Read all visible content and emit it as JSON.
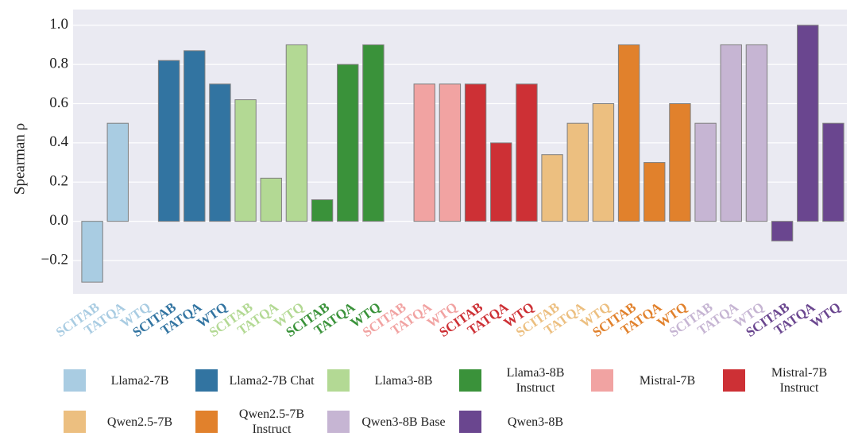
{
  "chart_data": {
    "type": "bar",
    "y_label": "Spearman ρ",
    "categories": [
      "SCITAB",
      "TATQA",
      "WTQ"
    ],
    "series": [
      {
        "name": "Llama2-7B",
        "color": "#a9cce2",
        "values": [
          -0.31,
          0.5,
          0.0
        ]
      },
      {
        "name": "Llama2-7B Chat",
        "color": "#3274a1",
        "values": [
          0.82,
          0.87,
          0.7
        ]
      },
      {
        "name": "Llama3-8B",
        "color": "#b3d994",
        "values": [
          0.62,
          0.22,
          0.9
        ]
      },
      {
        "name": "Llama3-8B Instruct",
        "color": "#3a923a",
        "values": [
          0.11,
          0.8,
          0.9
        ]
      },
      {
        "name": "Mistral-7B",
        "color": "#f1a3a2",
        "values": [
          0.0,
          0.7,
          0.7
        ]
      },
      {
        "name": "Mistral-7B Instruct",
        "color": "#cd3035",
        "values": [
          0.7,
          0.4,
          0.7
        ]
      },
      {
        "name": "Qwen2.5-7B",
        "color": "#ecbf80",
        "values": [
          0.34,
          0.5,
          0.6
        ]
      },
      {
        "name": "Qwen2.5-7B Instruct",
        "color": "#e1812c",
        "values": [
          0.9,
          0.3,
          0.6
        ]
      },
      {
        "name": "Qwen3-8B Base",
        "color": "#c6b5d3",
        "values": [
          0.5,
          0.9,
          0.9
        ]
      },
      {
        "name": "Qwen3-8B",
        "color": "#6a468f",
        "values": [
          -0.1,
          1.0,
          0.5
        ]
      }
    ],
    "ylim": [
      -0.37,
      1.08
    ],
    "yticks": [
      {
        "value": -0.2,
        "label": "−0.2"
      },
      {
        "value": 0,
        "label": "0.0"
      },
      {
        "value": 0.2,
        "label": "0.2"
      },
      {
        "value": 0.4,
        "label": "0.4"
      },
      {
        "value": 0.6,
        "label": "0.6"
      },
      {
        "value": 0.8,
        "label": "0.8"
      },
      {
        "value": 1.0,
        "label": "1.0"
      }
    ],
    "grid": true
  }
}
